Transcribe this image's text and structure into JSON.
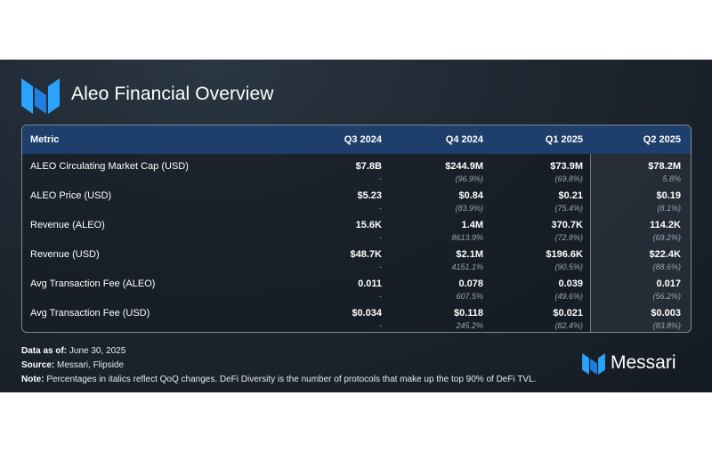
{
  "title": "Aleo Financial Overview",
  "colors": {
    "accent_blue": "#1e8fff",
    "header_bg": "#1e3f6b",
    "card_bg": "#1c242d"
  },
  "table": {
    "headers": [
      "Metric",
      "Q3 2024",
      "Q4 2024",
      "Q1 2025",
      "Q2 2025"
    ],
    "rows": [
      {
        "metric": "ALEO Circulating Market Cap (USD)",
        "values": [
          "$7.8B",
          "$244.9M",
          "$73.9M",
          "$78.2M"
        ],
        "changes": [
          "-",
          "(96.9%)",
          "(69.8%)",
          "5.8%"
        ]
      },
      {
        "metric": "ALEO Price (USD)",
        "values": [
          "$5.23",
          "$0.84",
          "$0.21",
          "$0.19"
        ],
        "changes": [
          "-",
          "(83.9%)",
          "(75.4%)",
          "(8.1%)"
        ]
      },
      {
        "metric": "Revenue (ALEO)",
        "values": [
          "15.6K",
          "1.4M",
          "370.7K",
          "114.2K"
        ],
        "changes": [
          "-",
          "8613.9%",
          "(72.8%)",
          "(69.2%)"
        ]
      },
      {
        "metric": "Revenue (USD)",
        "values": [
          "$48.7K",
          "$2.1M",
          "$196.6K",
          "$22.4K"
        ],
        "changes": [
          "-",
          "4151.1%",
          "(90.5%)",
          "(88.6%)"
        ]
      },
      {
        "metric": "Avg Transaction Fee (ALEO)",
        "values": [
          "0.011",
          "0.078",
          "0.039",
          "0.017"
        ],
        "changes": [
          "-",
          "607.5%",
          "(49.6%)",
          "(56.2%)"
        ]
      },
      {
        "metric": "Avg Transaction Fee (USD)",
        "values": [
          "$0.034",
          "$0.118",
          "$0.021",
          "$0.003"
        ],
        "changes": [
          "-",
          "245.2%",
          "(82.4%)",
          "(83.8%)"
        ]
      }
    ]
  },
  "footer": {
    "data_as_of_label": "Data as of:",
    "data_as_of_value": " June 30, 2025",
    "source_label": "Source:",
    "source_value": " Messari, Flipside",
    "note_label": "Note:",
    "note_value": " Percentages in italics reflect QoQ changes. DeFi Diversity is the number of protocols that make up the top 90% of DeFi TVL."
  },
  "brand": {
    "name": "Messari",
    "icon": "messari-logo-icon"
  }
}
